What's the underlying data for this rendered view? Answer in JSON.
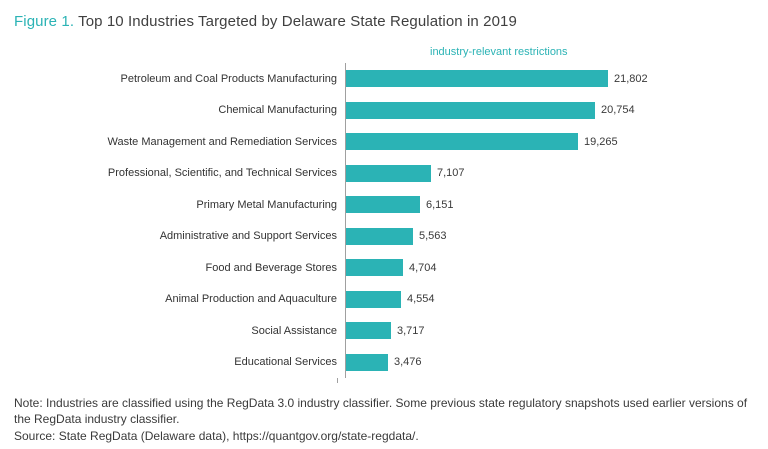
{
  "title": {
    "figure_label": "Figure 1.",
    "text": "Top 10 Industries Targeted by Delaware State Regulation in 2019"
  },
  "chart_data": {
    "type": "bar",
    "orientation": "horizontal",
    "title": "Top 10 Industries Targeted by Delaware State Regulation in 2019",
    "axis_label": "industry-relevant restrictions",
    "categories": [
      "Petroleum and Coal Products Manufacturing",
      "Chemical Manufacturing",
      "Waste Management and Remediation Services",
      "Professional, Scientific, and Technical Services",
      "Primary Metal Manufacturing",
      "Administrative and Support Services",
      "Food and Beverage Stores",
      "Animal Production and Aquaculture",
      "Social Assistance",
      "Educational Services"
    ],
    "values": [
      21802,
      20754,
      19265,
      7107,
      6151,
      5563,
      4704,
      4554,
      3717,
      3476
    ],
    "value_labels": [
      "21,802",
      "20,754",
      "19,265",
      "7,107",
      "6,151",
      "5,563",
      "4,704",
      "4,554",
      "3,717",
      "3,476"
    ],
    "xlim": [
      0,
      21802
    ],
    "grid": false,
    "legend": "none",
    "bar_color": "#2bb3b5"
  },
  "notes": {
    "note": "Note: Industries are classified using the RegData 3.0 industry classifier. Some previous state regulatory snapshots used earlier versions of the RegData industry classifier.",
    "source": "Source: State RegData (Delaware data), https://quantgov.org/state-regdata/."
  },
  "colors": {
    "accent": "#2bb3b5",
    "text": "#3a3a3a",
    "axis_line": "#a0a0a0"
  }
}
